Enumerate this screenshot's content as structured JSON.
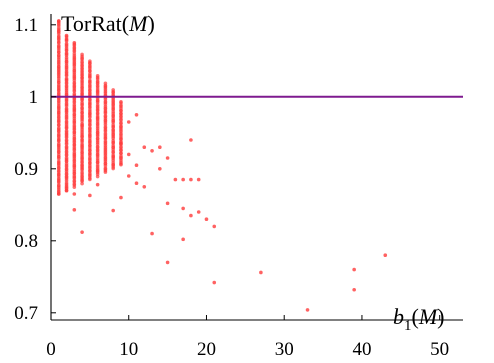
{
  "chart_data": {
    "type": "scatter",
    "ylabel": "TorRat(M)",
    "xlabel": "b1(M)",
    "xlim": [
      0,
      53
    ],
    "ylim": [
      0.69,
      1.115
    ],
    "x_ticks": [
      0,
      10,
      20,
      30,
      40,
      50
    ],
    "y_ticks": [
      0.7,
      0.8,
      0.9,
      1,
      1.1
    ],
    "x_tick_labels": [
      "0",
      "10",
      "20",
      "30",
      "40",
      "50"
    ],
    "y_tick_labels": [
      "0.7",
      "0.8",
      "0.9",
      "1",
      "1.1"
    ],
    "grid": false,
    "reference_line": {
      "y": 1,
      "color": "#7f1a8f"
    },
    "point_color": "#ff3b3b",
    "series": [
      {
        "column_spread": [
          {
            "x": 1,
            "min": 0.865,
            "max": 1.105
          },
          {
            "x": 2,
            "min": 0.87,
            "max": 1.085
          },
          {
            "x": 3,
            "min": 0.875,
            "max": 1.075
          },
          {
            "x": 4,
            "min": 0.88,
            "max": 1.06
          },
          {
            "x": 5,
            "min": 0.885,
            "max": 1.05
          },
          {
            "x": 6,
            "min": 0.89,
            "max": 1.03
          },
          {
            "x": 7,
            "min": 0.895,
            "max": 1.02
          },
          {
            "x": 8,
            "min": 0.9,
            "max": 1.01
          },
          {
            "x": 9,
            "min": 0.905,
            "max": 0.995
          }
        ],
        "points": [
          {
            "x": 1,
            "y": 1.105
          },
          {
            "x": 2,
            "y": 1.085
          },
          {
            "x": 3,
            "y": 1.075
          },
          {
            "x": 1,
            "y": 0.865
          },
          {
            "x": 2,
            "y": 0.87
          },
          {
            "x": 3,
            "y": 0.865
          },
          {
            "x": 3,
            "y": 0.843
          },
          {
            "x": 4,
            "y": 0.812
          },
          {
            "x": 5,
            "y": 0.863
          },
          {
            "x": 6,
            "y": 0.878
          },
          {
            "x": 8,
            "y": 0.842
          },
          {
            "x": 9,
            "y": 0.86
          },
          {
            "x": 9,
            "y": 0.935
          },
          {
            "x": 10,
            "y": 0.965
          },
          {
            "x": 10,
            "y": 0.92
          },
          {
            "x": 10,
            "y": 0.89
          },
          {
            "x": 11,
            "y": 0.975
          },
          {
            "x": 11,
            "y": 0.905
          },
          {
            "x": 11,
            "y": 0.88
          },
          {
            "x": 12,
            "y": 0.93
          },
          {
            "x": 12,
            "y": 0.875
          },
          {
            "x": 13,
            "y": 0.81
          },
          {
            "x": 13,
            "y": 0.925
          },
          {
            "x": 14,
            "y": 0.93
          },
          {
            "x": 14,
            "y": 0.9
          },
          {
            "x": 15,
            "y": 0.915
          },
          {
            "x": 15,
            "y": 0.852
          },
          {
            "x": 15,
            "y": 0.77
          },
          {
            "x": 16,
            "y": 0.885
          },
          {
            "x": 17,
            "y": 0.885
          },
          {
            "x": 17,
            "y": 0.845
          },
          {
            "x": 17,
            "y": 0.802
          },
          {
            "x": 18,
            "y": 0.94
          },
          {
            "x": 18,
            "y": 0.885
          },
          {
            "x": 18,
            "y": 0.835
          },
          {
            "x": 19,
            "y": 0.885
          },
          {
            "x": 19,
            "y": 0.84
          },
          {
            "x": 20,
            "y": 0.83
          },
          {
            "x": 21,
            "y": 0.82
          },
          {
            "x": 21,
            "y": 0.742
          },
          {
            "x": 27,
            "y": 0.756
          },
          {
            "x": 33,
            "y": 0.704
          },
          {
            "x": 39,
            "y": 0.76
          },
          {
            "x": 39,
            "y": 0.732
          },
          {
            "x": 43,
            "y": 0.78
          }
        ]
      }
    ]
  }
}
